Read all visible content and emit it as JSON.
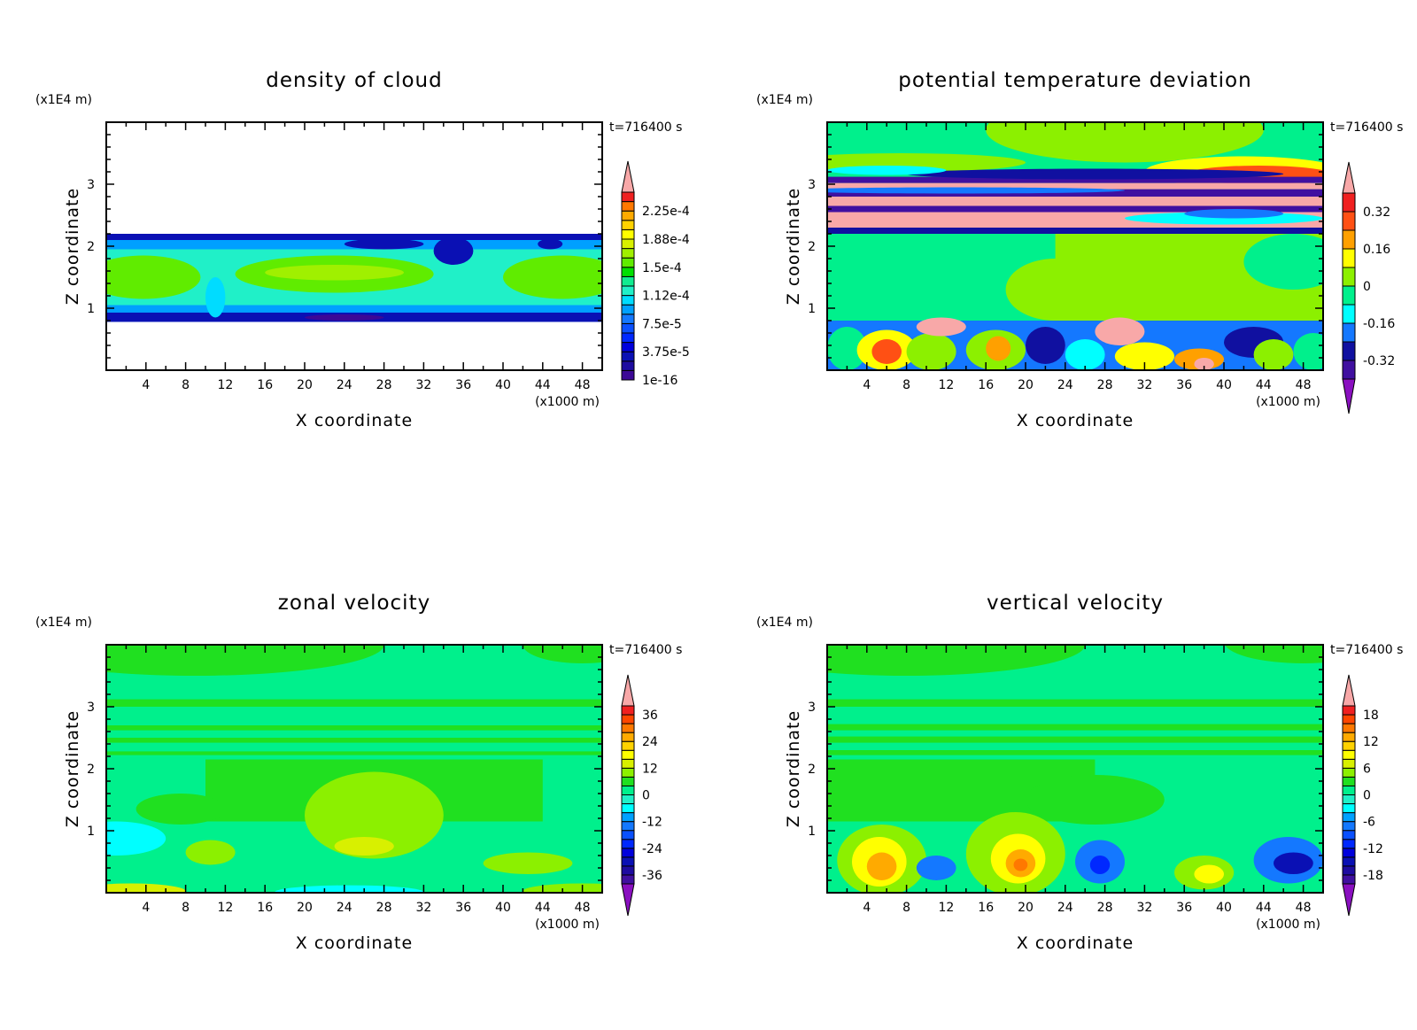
{
  "chart_data": [
    {
      "type": "heatmap",
      "title": "density of cloud",
      "xlabel": "X coordinate",
      "ylabel": "Z coordinate",
      "x_unit": "(x1000 m)",
      "y_unit": "(x1E4 m)",
      "time_label": "t=716400 s",
      "xlim": [
        0,
        50
      ],
      "ylim": [
        0,
        4
      ],
      "xticks": [
        "4",
        "8",
        "12",
        "16",
        "20",
        "24",
        "28",
        "32",
        "36",
        "40",
        "44",
        "48"
      ],
      "yticks": [
        "1",
        "2",
        "3"
      ],
      "colorbar": {
        "segments": 20,
        "lower_extend": false,
        "upper_extend": true,
        "colors": [
          "#3c0896",
          "#1e0ca0",
          "#0a10b4",
          "#0000dc",
          "#0028ff",
          "#0a50ff",
          "#1478ff",
          "#00a0ff",
          "#00dcff",
          "#20f0c8",
          "#10ec90",
          "#00e000",
          "#60ec00",
          "#a0f000",
          "#d8f000",
          "#ffff00",
          "#ffd200",
          "#ffaa00",
          "#ff7800",
          "#f02020"
        ],
        "upper_color": "#f8a8a8",
        "labels": [
          "1e-16",
          "3.75e-5",
          "7.5e-5",
          "1.12e-4",
          "1.5e-4",
          "1.88e-4",
          "2.25e-4"
        ],
        "label_boundaries": [
          0,
          3,
          6,
          9,
          12,
          15,
          18
        ]
      },
      "background": "#ffffff",
      "regions": [
        {
          "s": "r",
          "x0": 0,
          "x1": 50,
          "z0": 0.78,
          "z1": 2.2,
          "c": "#1478ff"
        },
        {
          "s": "r",
          "x0": 0,
          "x1": 50,
          "z0": 0.78,
          "z1": 0.93,
          "c": "#0a10b4"
        },
        {
          "s": "r",
          "x0": 0,
          "x1": 50,
          "z0": 2.1,
          "z1": 2.2,
          "c": "#0a10b4"
        },
        {
          "s": "r",
          "x0": 0,
          "x1": 50,
          "z0": 0.93,
          "z1": 1.05,
          "c": "#00a0ff"
        },
        {
          "s": "r",
          "x0": 0,
          "x1": 50,
          "z0": 1.95,
          "z1": 2.1,
          "c": "#00a0ff"
        },
        {
          "s": "r",
          "x0": 0,
          "x1": 50,
          "z0": 1.05,
          "z1": 1.95,
          "c": "#20f0c8"
        },
        {
          "s": "e",
          "x0": -2,
          "x1": 9.5,
          "z0": 1.15,
          "z1": 1.85,
          "c": "#60ec00"
        },
        {
          "s": "e",
          "x0": 13,
          "x1": 33,
          "z0": 1.25,
          "z1": 1.85,
          "c": "#60ec00"
        },
        {
          "s": "e",
          "x0": 40,
          "x1": 52,
          "z0": 1.15,
          "z1": 1.85,
          "c": "#60ec00"
        },
        {
          "s": "e",
          "x0": 16,
          "x1": 30,
          "z0": 1.45,
          "z1": 1.7,
          "c": "#a0f000"
        },
        {
          "s": "e",
          "x0": 10,
          "x1": 12,
          "z0": 0.85,
          "z1": 1.5,
          "c": "#00dcff"
        },
        {
          "s": "e",
          "x0": 24,
          "x1": 32,
          "z0": 1.95,
          "z1": 2.12,
          "c": "#0a10b4"
        },
        {
          "s": "e",
          "x0": 33,
          "x1": 37,
          "z0": 1.7,
          "z1": 2.15,
          "c": "#0a10b4"
        },
        {
          "s": "e",
          "x0": 43.5,
          "x1": 46,
          "z0": 1.95,
          "z1": 2.12,
          "c": "#0a10b4"
        },
        {
          "s": "e",
          "x0": 20,
          "x1": 28,
          "z0": 0.8,
          "z1": 0.9,
          "c": "#3c0896"
        }
      ]
    },
    {
      "type": "heatmap",
      "title": "potential temperature deviation",
      "xlabel": "X coordinate",
      "ylabel": "Z coordinate",
      "x_unit": "(x1000 m)",
      "y_unit": "(x1E4 m)",
      "time_label": "t=716400 s",
      "xlim": [
        0,
        50
      ],
      "ylim": [
        0,
        4
      ],
      "xticks": [
        "4",
        "8",
        "12",
        "16",
        "20",
        "24",
        "28",
        "32",
        "36",
        "40",
        "44",
        "48"
      ],
      "yticks": [
        "1",
        "2",
        "3"
      ],
      "colorbar": {
        "segments": 10,
        "lower_extend": true,
        "upper_extend": true,
        "colors": [
          "#4010a0",
          "#1010a0",
          "#1478ff",
          "#00ffff",
          "#00f08c",
          "#8cf000",
          "#ffff00",
          "#ffa000",
          "#ff5014",
          "#f02020"
        ],
        "upper_color": "#f8a8a8",
        "lower_color": "#8a10c0",
        "labels": [
          "-0.32",
          "-0.16",
          "0",
          "0.16",
          "0.32"
        ],
        "label_boundaries": [
          1,
          3,
          5,
          7,
          9
        ]
      },
      "background": "#00f08c",
      "regions": [
        {
          "s": "e",
          "x0": 16,
          "x1": 44,
          "z0": 3.35,
          "z1": 4.4,
          "c": "#8cf000"
        },
        {
          "s": "e",
          "x0": -5,
          "x1": 20,
          "z0": 3.2,
          "z1": 3.5,
          "c": "#8cf000"
        },
        {
          "s": "e",
          "x0": 32,
          "x1": 52,
          "z0": 2.95,
          "z1": 3.45,
          "c": "#ffff00"
        },
        {
          "s": "e",
          "x0": 36,
          "x1": 51,
          "z0": 3.0,
          "z1": 3.3,
          "c": "#ff5014"
        },
        {
          "s": "r",
          "x0": 0,
          "x1": 50,
          "z0": 2.2,
          "z1": 2.3,
          "c": "#1010a0"
        },
        {
          "s": "r",
          "x0": 0,
          "x1": 50,
          "z0": 2.3,
          "z1": 2.55,
          "c": "#f8a8a8"
        },
        {
          "s": "r",
          "x0": 0,
          "x1": 50,
          "z0": 2.55,
          "z1": 2.65,
          "c": "#4010a0"
        },
        {
          "s": "r",
          "x0": 0,
          "x1": 50,
          "z0": 2.65,
          "z1": 2.8,
          "c": "#f8a8a8"
        },
        {
          "s": "r",
          "x0": 0,
          "x1": 50,
          "z0": 2.8,
          "z1": 2.92,
          "c": "#4010a0"
        },
        {
          "s": "r",
          "x0": 0,
          "x1": 50,
          "z0": 2.92,
          "z1": 3.02,
          "c": "#f8a8a8"
        },
        {
          "s": "r",
          "x0": 0,
          "x1": 50,
          "z0": 3.02,
          "z1": 3.12,
          "c": "#4010a0"
        },
        {
          "s": "e",
          "x0": 8,
          "x1": 46,
          "z0": 3.08,
          "z1": 3.25,
          "c": "#1010a0"
        },
        {
          "s": "e",
          "x0": 0,
          "x1": 12,
          "z0": 3.15,
          "z1": 3.3,
          "c": "#00ffff"
        },
        {
          "s": "e",
          "x0": 30,
          "x1": 50,
          "z0": 2.35,
          "z1": 2.55,
          "c": "#00ffff"
        },
        {
          "s": "e",
          "x0": 36,
          "x1": 46,
          "z0": 2.45,
          "z1": 2.6,
          "c": "#1478ff"
        },
        {
          "s": "e",
          "x0": -4,
          "x1": 30,
          "z0": 2.85,
          "z1": 2.95,
          "c": "#1478ff"
        },
        {
          "s": "r",
          "x0": 0,
          "x1": 50,
          "z0": 0.8,
          "z1": 2.2,
          "c": "#00f08c"
        },
        {
          "s": "r",
          "x0": 23,
          "x1": 50,
          "z0": 0.8,
          "z1": 2.2,
          "c": "#8cf000"
        },
        {
          "s": "e",
          "x0": 18,
          "x1": 28,
          "z0": 0.8,
          "z1": 1.8,
          "c": "#8cf000"
        },
        {
          "s": "e",
          "x0": 42,
          "x1": 52,
          "z0": 1.3,
          "z1": 2.2,
          "c": "#00f08c"
        },
        {
          "s": "r",
          "x0": 0,
          "x1": 50,
          "z0": 0,
          "z1": 0.8,
          "c": "#1478ff"
        },
        {
          "s": "e",
          "x0": 0,
          "x1": 4,
          "z0": 0,
          "z1": 0.7,
          "c": "#00f08c"
        },
        {
          "s": "e",
          "x0": 3,
          "x1": 9,
          "z0": 0,
          "z1": 0.65,
          "c": "#ffff00"
        },
        {
          "s": "e",
          "x0": 4.5,
          "x1": 7.5,
          "z0": 0.1,
          "z1": 0.5,
          "c": "#ff5014"
        },
        {
          "s": "e",
          "x0": 8,
          "x1": 13,
          "z0": 0,
          "z1": 0.6,
          "c": "#8cf000"
        },
        {
          "s": "e",
          "x0": 9,
          "x1": 14,
          "z0": 0.55,
          "z1": 0.85,
          "c": "#f8a8a8"
        },
        {
          "s": "e",
          "x0": 14,
          "x1": 20,
          "z0": 0,
          "z1": 0.65,
          "c": "#8cf000"
        },
        {
          "s": "e",
          "x0": 16,
          "x1": 18.5,
          "z0": 0.15,
          "z1": 0.55,
          "c": "#ffa000"
        },
        {
          "s": "e",
          "x0": 20,
          "x1": 24,
          "z0": 0.1,
          "z1": 0.7,
          "c": "#1010a0"
        },
        {
          "s": "e",
          "x0": 24,
          "x1": 28,
          "z0": 0,
          "z1": 0.5,
          "c": "#00ffff"
        },
        {
          "s": "e",
          "x0": 27,
          "x1": 32,
          "z0": 0.4,
          "z1": 0.85,
          "c": "#f8a8a8"
        },
        {
          "s": "e",
          "x0": 29,
          "x1": 35,
          "z0": 0,
          "z1": 0.45,
          "c": "#ffff00"
        },
        {
          "s": "e",
          "x0": 35,
          "x1": 40,
          "z0": 0,
          "z1": 0.35,
          "c": "#ffa000"
        },
        {
          "s": "e",
          "x0": 37,
          "x1": 39,
          "z0": 0,
          "z1": 0.2,
          "c": "#f8a8a8"
        },
        {
          "s": "e",
          "x0": 40,
          "x1": 46,
          "z0": 0.2,
          "z1": 0.7,
          "c": "#1010a0"
        },
        {
          "s": "e",
          "x0": 43,
          "x1": 47,
          "z0": 0,
          "z1": 0.5,
          "c": "#8cf000"
        },
        {
          "s": "e",
          "x0": 47,
          "x1": 51,
          "z0": 0,
          "z1": 0.6,
          "c": "#00f08c"
        }
      ]
    },
    {
      "type": "heatmap",
      "title": "zonal velocity",
      "xlabel": "X coordinate",
      "ylabel": "Z coordinate",
      "x_unit": "(x1000 m)",
      "y_unit": "(x1E4 m)",
      "time_label": "t=716400 s",
      "xlim": [
        0,
        50
      ],
      "ylim": [
        0,
        4
      ],
      "xticks": [
        "4",
        "8",
        "12",
        "16",
        "20",
        "24",
        "28",
        "32",
        "36",
        "40",
        "44",
        "48"
      ],
      "yticks": [
        "1",
        "2",
        "3"
      ],
      "colorbar": {
        "segments": 20,
        "lower_extend": true,
        "upper_extend": true,
        "colors": [
          "#4010a0",
          "#1e0ca0",
          "#0a10b4",
          "#0000dc",
          "#0028ff",
          "#0a50ff",
          "#1478ff",
          "#00a0ff",
          "#00ffff",
          "#20f0c8",
          "#00f08c",
          "#20e020",
          "#8cf000",
          "#d8f000",
          "#ffff00",
          "#ffd200",
          "#ffaa00",
          "#ff7800",
          "#ff4600",
          "#f02020"
        ],
        "upper_color": "#f8a8a8",
        "lower_color": "#8a10c0",
        "labels": [
          "-36",
          "-24",
          "-12",
          "0",
          "12",
          "24",
          "36"
        ],
        "label_boundaries": [
          1,
          4,
          7,
          10,
          13,
          16,
          19
        ]
      },
      "background": "#00f08c",
      "regions": [
        {
          "s": "e",
          "x0": -10,
          "x1": 28,
          "z0": 3.5,
          "z1": 4.5,
          "c": "#20e020"
        },
        {
          "s": "e",
          "x0": 42,
          "x1": 54,
          "z0": 3.7,
          "z1": 4.3,
          "c": "#20e020"
        },
        {
          "s": "r",
          "x0": 0,
          "x1": 50,
          "z0": 3.0,
          "z1": 3.12,
          "c": "#20e020"
        },
        {
          "s": "r",
          "x0": 0,
          "x1": 50,
          "z0": 2.62,
          "z1": 2.7,
          "c": "#20e020"
        },
        {
          "s": "r",
          "x0": 0,
          "x1": 50,
          "z0": 2.42,
          "z1": 2.5,
          "c": "#20e020"
        },
        {
          "s": "r",
          "x0": 0,
          "x1": 50,
          "z0": 2.22,
          "z1": 2.28,
          "c": "#20e020"
        },
        {
          "s": "r",
          "x0": 10,
          "x1": 44,
          "z0": 1.15,
          "z1": 2.15,
          "c": "#20e020"
        },
        {
          "s": "e",
          "x0": 3,
          "x1": 12,
          "z0": 1.1,
          "z1": 1.6,
          "c": "#20e020"
        },
        {
          "s": "e",
          "x0": 20,
          "x1": 34,
          "z0": 0.55,
          "z1": 1.95,
          "c": "#8cf000"
        },
        {
          "s": "e",
          "x0": 23,
          "x1": 29,
          "z0": 0.6,
          "z1": 0.9,
          "c": "#d8f000"
        },
        {
          "s": "e",
          "x0": -4,
          "x1": 6,
          "z0": 0.6,
          "z1": 1.15,
          "c": "#00ffff"
        },
        {
          "s": "e",
          "x0": 8,
          "x1": 13,
          "z0": 0.45,
          "z1": 0.85,
          "c": "#8cf000"
        },
        {
          "s": "e",
          "x0": 38,
          "x1": 47,
          "z0": 0.3,
          "z1": 0.65,
          "c": "#8cf000"
        },
        {
          "s": "e",
          "x0": -3,
          "x1": 8,
          "z0": -0.1,
          "z1": 0.15,
          "c": "#d8f000"
        },
        {
          "s": "e",
          "x0": 17,
          "x1": 32,
          "z0": -0.1,
          "z1": 0.12,
          "c": "#00ffff"
        },
        {
          "s": "e",
          "x0": 42,
          "x1": 54,
          "z0": -0.1,
          "z1": 0.15,
          "c": "#8cf000"
        }
      ]
    },
    {
      "type": "heatmap",
      "title": "vertical velocity",
      "xlabel": "X coordinate",
      "ylabel": "Z coordinate",
      "x_unit": "(x1000 m)",
      "y_unit": "(x1E4 m)",
      "time_label": "t=716400 s",
      "xlim": [
        0,
        50
      ],
      "ylim": [
        0,
        4
      ],
      "xticks": [
        "4",
        "8",
        "12",
        "16",
        "20",
        "24",
        "28",
        "32",
        "36",
        "40",
        "44",
        "48"
      ],
      "yticks": [
        "1",
        "2",
        "3"
      ],
      "colorbar": {
        "segments": 20,
        "lower_extend": true,
        "upper_extend": true,
        "colors": [
          "#4010a0",
          "#1e0ca0",
          "#0a10b4",
          "#0000dc",
          "#0028ff",
          "#0a50ff",
          "#1478ff",
          "#00a0ff",
          "#00ffff",
          "#20f0c8",
          "#00f08c",
          "#20e020",
          "#8cf000",
          "#d8f000",
          "#ffff00",
          "#ffd200",
          "#ffaa00",
          "#ff7800",
          "#ff4600",
          "#f02020"
        ],
        "upper_color": "#f8a8a8",
        "lower_color": "#8a10c0",
        "labels": [
          "-18",
          "-12",
          "-6",
          "0",
          "6",
          "12",
          "18"
        ],
        "label_boundaries": [
          1,
          4,
          7,
          10,
          13,
          16,
          19
        ]
      },
      "background": "#00f08c",
      "regions": [
        {
          "s": "e",
          "x0": -10,
          "x1": 26,
          "z0": 3.5,
          "z1": 4.5,
          "c": "#20e020"
        },
        {
          "s": "e",
          "x0": 40,
          "x1": 56,
          "z0": 3.7,
          "z1": 4.4,
          "c": "#20e020"
        },
        {
          "s": "r",
          "x0": 0,
          "x1": 50,
          "z0": 3.0,
          "z1": 3.12,
          "c": "#20e020"
        },
        {
          "s": "r",
          "x0": 0,
          "x1": 50,
          "z0": 2.62,
          "z1": 2.72,
          "c": "#20e020"
        },
        {
          "s": "r",
          "x0": 0,
          "x1": 50,
          "z0": 2.42,
          "z1": 2.52,
          "c": "#20e020"
        },
        {
          "s": "r",
          "x0": 0,
          "x1": 50,
          "z0": 2.22,
          "z1": 2.3,
          "c": "#20e020"
        },
        {
          "s": "r",
          "x0": 0,
          "x1": 27,
          "z0": 1.15,
          "z1": 2.15,
          "c": "#20e020"
        },
        {
          "s": "e",
          "x0": 20,
          "x1": 34,
          "z0": 1.1,
          "z1": 1.9,
          "c": "#20e020"
        },
        {
          "s": "e",
          "x0": 1,
          "x1": 10,
          "z0": -0.05,
          "z1": 1.1,
          "c": "#8cf000"
        },
        {
          "s": "e",
          "x0": 2.5,
          "x1": 8,
          "z0": 0.1,
          "z1": 0.9,
          "c": "#ffff00"
        },
        {
          "s": "e",
          "x0": 4,
          "x1": 7,
          "z0": 0.2,
          "z1": 0.65,
          "c": "#ffaa00"
        },
        {
          "s": "e",
          "x0": 14,
          "x1": 24,
          "z0": -0.05,
          "z1": 1.3,
          "c": "#8cf000"
        },
        {
          "s": "e",
          "x0": 16.5,
          "x1": 22,
          "z0": 0.15,
          "z1": 0.95,
          "c": "#ffff00"
        },
        {
          "s": "e",
          "x0": 18,
          "x1": 21,
          "z0": 0.25,
          "z1": 0.7,
          "c": "#ffaa00"
        },
        {
          "s": "e",
          "x0": 18.8,
          "x1": 20.2,
          "z0": 0.35,
          "z1": 0.55,
          "c": "#ff7800"
        },
        {
          "s": "e",
          "x0": 9,
          "x1": 13,
          "z0": 0.2,
          "z1": 0.6,
          "c": "#1478ff"
        },
        {
          "s": "e",
          "x0": 25,
          "x1": 30,
          "z0": 0.15,
          "z1": 0.85,
          "c": "#1478ff"
        },
        {
          "s": "e",
          "x0": 26.5,
          "x1": 28.5,
          "z0": 0.3,
          "z1": 0.6,
          "c": "#0028ff"
        },
        {
          "s": "e",
          "x0": 35,
          "x1": 41,
          "z0": 0.05,
          "z1": 0.6,
          "c": "#8cf000"
        },
        {
          "s": "e",
          "x0": 37,
          "x1": 40,
          "z0": 0.15,
          "z1": 0.45,
          "c": "#ffff00"
        },
        {
          "s": "e",
          "x0": 43,
          "x1": 50,
          "z0": 0.15,
          "z1": 0.9,
          "c": "#1478ff"
        },
        {
          "s": "e",
          "x0": 45,
          "x1": 49,
          "z0": 0.3,
          "z1": 0.65,
          "c": "#0a10b4"
        }
      ]
    }
  ]
}
